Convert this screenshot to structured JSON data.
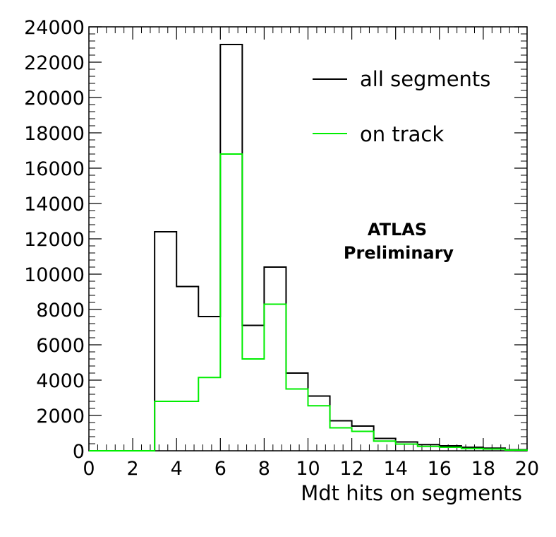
{
  "chart_data": {
    "type": "histogram",
    "title": "",
    "xlabel": "Mdt hits on segments",
    "ylabel": "",
    "xlim": [
      0,
      20
    ],
    "ylim": [
      0,
      24000
    ],
    "bin_edges": [
      0,
      1,
      2,
      3,
      4,
      5,
      6,
      7,
      8,
      9,
      10,
      11,
      12,
      13,
      14,
      15,
      16,
      17,
      18,
      19,
      20
    ],
    "x_ticks": [
      0,
      2,
      4,
      6,
      8,
      10,
      12,
      14,
      16,
      18,
      20
    ],
    "y_ticks": [
      0,
      2000,
      4000,
      6000,
      8000,
      10000,
      12000,
      14000,
      16000,
      18000,
      20000,
      22000,
      24000
    ],
    "series": [
      {
        "name": "all segments",
        "color": "#000000",
        "values": [
          0,
          0,
          0,
          12400,
          9300,
          7600,
          23000,
          7100,
          10400,
          4400,
          3100,
          1700,
          1400,
          700,
          500,
          350,
          280,
          200,
          150,
          60
        ]
      },
      {
        "name": "on track",
        "color": "#00ee00",
        "values": [
          0,
          0,
          0,
          2800,
          2800,
          4150,
          16800,
          5200,
          8300,
          3500,
          2550,
          1300,
          1100,
          550,
          380,
          250,
          200,
          130,
          100,
          40
        ]
      }
    ],
    "legend_position": "top-right",
    "annotations": [
      "ATLAS",
      "Preliminary"
    ]
  }
}
